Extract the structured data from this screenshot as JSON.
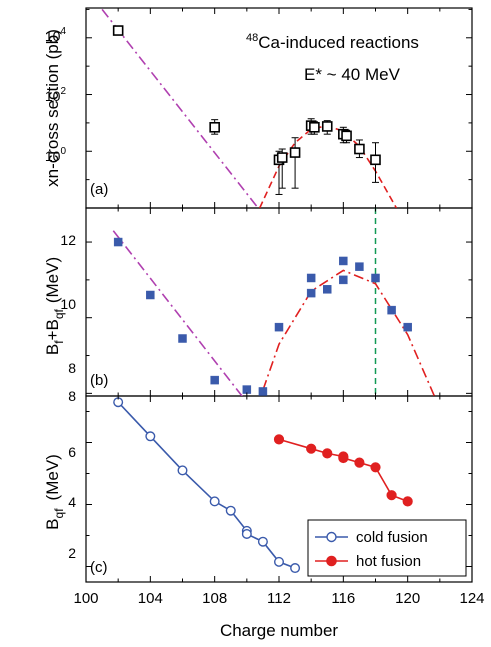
{
  "figure": {
    "xlabel": "Charge number",
    "x_ticks": [
      "100",
      "104",
      "108",
      "112",
      "116",
      "120",
      "124"
    ]
  },
  "chart_data": [
    {
      "type": "scatter",
      "panel_label": "(a)",
      "ylabel": "xn-cross section (pb)",
      "annotation_reaction_super": "48",
      "annotation_reaction": "Ca-induced reactions",
      "annotation_energy": "E* ~ 40 MeV",
      "yscale": "log",
      "xlim": [
        100,
        124
      ],
      "ylim_log10": [
        -2.0,
        5.05
      ],
      "y_ticks": [
        {
          "label_base": "10",
          "label_exp": "4",
          "value": 10000
        },
        {
          "label_base": "10",
          "label_exp": "2",
          "value": 100
        },
        {
          "label_base": "10",
          "label_exp": "0",
          "value": 1
        }
      ],
      "series": [
        {
          "marker": "open-square",
          "color": "#000000",
          "points": [
            {
              "x": 102,
              "y": 18000,
              "ylo": 14000,
              "yhi": 23000
            },
            {
              "x": 108,
              "y": 7,
              "ylo": 4,
              "yhi": 13
            },
            {
              "x": 112,
              "y": 0.5,
              "ylo": 0.03,
              "yhi": 1.0
            },
            {
              "x": 112.2,
              "y": 0.6,
              "ylo": 0.05,
              "yhi": 1.2
            },
            {
              "x": 113,
              "y": 0.9,
              "ylo": 0.05,
              "yhi": 3
            },
            {
              "x": 114,
              "y": 8,
              "ylo": 4,
              "yhi": 14
            },
            {
              "x": 114.2,
              "y": 7,
              "ylo": 4,
              "yhi": 11
            },
            {
              "x": 115,
              "y": 7.5,
              "ylo": 4,
              "yhi": 12
            },
            {
              "x": 116,
              "y": 4,
              "ylo": 2,
              "yhi": 7
            },
            {
              "x": 116.2,
              "y": 3.5,
              "ylo": 2,
              "yhi": 5.5
            },
            {
              "x": 117,
              "y": 1.2,
              "ylo": 0.6,
              "yhi": 2.5
            },
            {
              "x": 118,
              "y": 0.5,
              "ylo": 0.08,
              "yhi": 2
            }
          ]
        },
        {
          "style": "dash-dot",
          "color": "#b040b0",
          "points": [
            {
              "x": 101,
              "y": 100000
            },
            {
              "x": 110.7,
              "y": 0.01
            }
          ]
        },
        {
          "style": "dash",
          "color": "#e02020",
          "points": [
            {
              "x": 110.8,
              "y": 0.01
            },
            {
              "x": 112,
              "y": 0.3
            },
            {
              "x": 113,
              "y": 2
            },
            {
              "x": 114,
              "y": 6
            },
            {
              "x": 115,
              "y": 8
            },
            {
              "x": 116,
              "y": 5
            },
            {
              "x": 117,
              "y": 1.5
            },
            {
              "x": 118,
              "y": 0.2
            },
            {
              "x": 119.3,
              "y": 0.01
            }
          ]
        }
      ]
    },
    {
      "type": "scatter",
      "panel_label": "(b)",
      "ylabel_main": "B",
      "ylabel_sub1": "f",
      "ylabel_plus": "+B",
      "ylabel_sub2": "qf",
      "ylabel_unit": "(MeV)",
      "xlim": [
        100,
        124
      ],
      "ylim": [
        7.93,
        12.9
      ],
      "y_ticks": [
        "8",
        "10",
        "12"
      ],
      "vline_x": 118,
      "vline_color": "#119955",
      "series": [
        {
          "marker": "filled-square",
          "color": "#3a5aab",
          "points": [
            {
              "x": 102,
              "y": 12.0
            },
            {
              "x": 104,
              "y": 10.6
            },
            {
              "x": 106,
              "y": 9.45
            },
            {
              "x": 108,
              "y": 8.35
            },
            {
              "x": 109,
              "y": 7.65
            },
            {
              "x": 110,
              "y": 7.65
            },
            {
              "x": 110,
              "y": 8.1
            },
            {
              "x": 111,
              "y": 8.05
            },
            {
              "x": 112,
              "y": 9.75
            },
            {
              "x": 114,
              "y": 10.65
            },
            {
              "x": 114,
              "y": 11.05
            },
            {
              "x": 115,
              "y": 10.75
            },
            {
              "x": 116,
              "y": 11.5
            },
            {
              "x": 116,
              "y": 11.0
            },
            {
              "x": 117,
              "y": 11.35
            },
            {
              "x": 118,
              "y": 11.05
            },
            {
              "x": 119,
              "y": 10.2
            },
            {
              "x": 120,
              "y": 9.75
            }
          ]
        },
        {
          "style": "dash-dot",
          "color": "#b040b0",
          "points": [
            {
              "x": 101.7,
              "y": 12.3
            },
            {
              "x": 110.3,
              "y": 7.6
            }
          ]
        },
        {
          "style": "dash-dot",
          "color": "#e02020",
          "points": [
            {
              "x": 110.6,
              "y": 7.6
            },
            {
              "x": 112,
              "y": 9.3
            },
            {
              "x": 114,
              "y": 10.7
            },
            {
              "x": 116,
              "y": 11.25
            },
            {
              "x": 118,
              "y": 10.9
            },
            {
              "x": 120,
              "y": 9.55
            },
            {
              "x": 122,
              "y": 7.6
            }
          ]
        }
      ]
    },
    {
      "type": "line",
      "panel_label": "(c)",
      "ylabel_main": "B",
      "ylabel_sub": "qf",
      "ylabel_unit": "(MeV)",
      "xlim": [
        100,
        124
      ],
      "ylim": [
        1.5,
        7.5
      ],
      "y_ticks": [
        "2",
        "4",
        "6"
      ],
      "legend_position": "bottom-right",
      "series": [
        {
          "name": "cold fusion",
          "marker": "open-circle",
          "color": "#3a5aab",
          "points": [
            {
              "x": 102,
              "y": 7.3
            },
            {
              "x": 104,
              "y": 6.2
            },
            {
              "x": 106,
              "y": 5.1
            },
            {
              "x": 108,
              "y": 4.1
            },
            {
              "x": 109,
              "y": 3.8
            },
            {
              "x": 110,
              "y": 3.15
            },
            {
              "x": 110,
              "y": 3.05
            },
            {
              "x": 111,
              "y": 2.8
            },
            {
              "x": 112,
              "y": 2.15
            },
            {
              "x": 113,
              "y": 1.95
            }
          ]
        },
        {
          "name": "hot fusion",
          "marker": "filled-circle",
          "color": "#e02020",
          "points": [
            {
              "x": 112,
              "y": 6.1
            },
            {
              "x": 114,
              "y": 5.8
            },
            {
              "x": 115,
              "y": 5.65
            },
            {
              "x": 116,
              "y": 5.55
            },
            {
              "x": 116,
              "y": 5.5
            },
            {
              "x": 117,
              "y": 5.35
            },
            {
              "x": 118,
              "y": 5.2
            },
            {
              "x": 119,
              "y": 4.3
            },
            {
              "x": 120,
              "y": 4.1
            }
          ]
        }
      ]
    }
  ]
}
